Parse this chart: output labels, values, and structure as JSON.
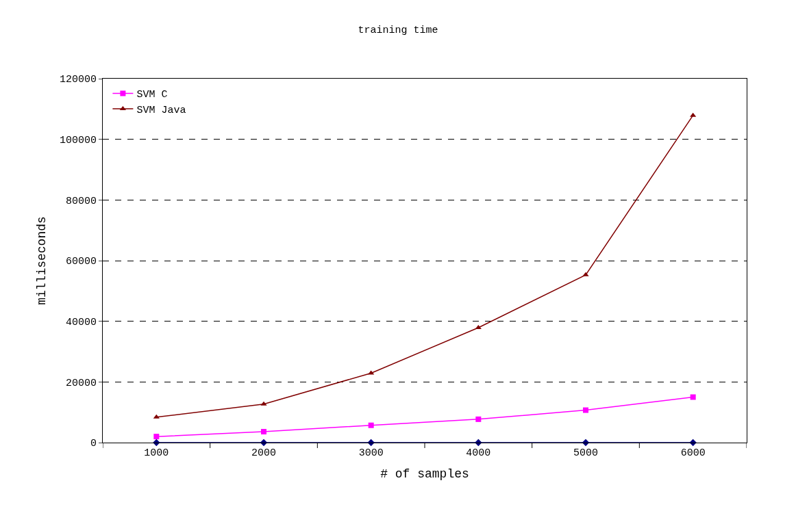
{
  "chart_data": {
    "type": "line",
    "title": "training time",
    "xlabel": "# of samples",
    "ylabel": "milliseconds",
    "categories": [
      "1000",
      "2000",
      "3000",
      "4000",
      "5000",
      "6000"
    ],
    "series": [
      {
        "color": "#000080",
        "marker": "diamond",
        "values": [
          0,
          0,
          0,
          0,
          0,
          0
        ]
      },
      {
        "name": "SVM C",
        "color": "#ff00ff",
        "marker": "square",
        "values": [
          2000,
          3600,
          5700,
          7700,
          10700,
          15000
        ]
      },
      {
        "name": "SVM Java",
        "color": "#800000",
        "marker": "triangle",
        "values": [
          8400,
          12700,
          22900,
          37900,
          55300,
          107900
        ]
      }
    ],
    "ylim": [
      0,
      120000
    ],
    "yticks": [
      0,
      20000,
      40000,
      60000,
      80000,
      100000,
      120000
    ],
    "grid": "y",
    "legend": "top left",
    "line_style": "solid"
  }
}
